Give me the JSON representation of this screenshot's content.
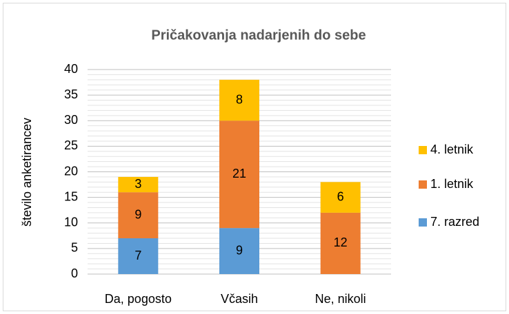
{
  "chart_data": {
    "type": "stacked_bar",
    "title": "Pričakovanja nadarjenih do sebe",
    "y_label": "število anketirancev",
    "categories": [
      "Da, pogosto",
      "Včasih",
      "Ne, nikoli"
    ],
    "series": [
      {
        "name": "7. razred",
        "color": "#5b9bd5",
        "values": [
          7,
          9,
          null
        ]
      },
      {
        "name": "1. letnik",
        "color": "#ed7d31",
        "values": [
          9,
          21,
          12
        ]
      },
      {
        "name": "4. letnik",
        "color": "#ffc000",
        "values": [
          3,
          8,
          6
        ]
      }
    ],
    "ylim": [
      0,
      40
    ],
    "yticks": [
      0,
      5,
      10,
      15,
      20,
      25,
      30,
      35,
      40
    ],
    "grid": true,
    "minor_grid": true,
    "legend": "right"
  }
}
